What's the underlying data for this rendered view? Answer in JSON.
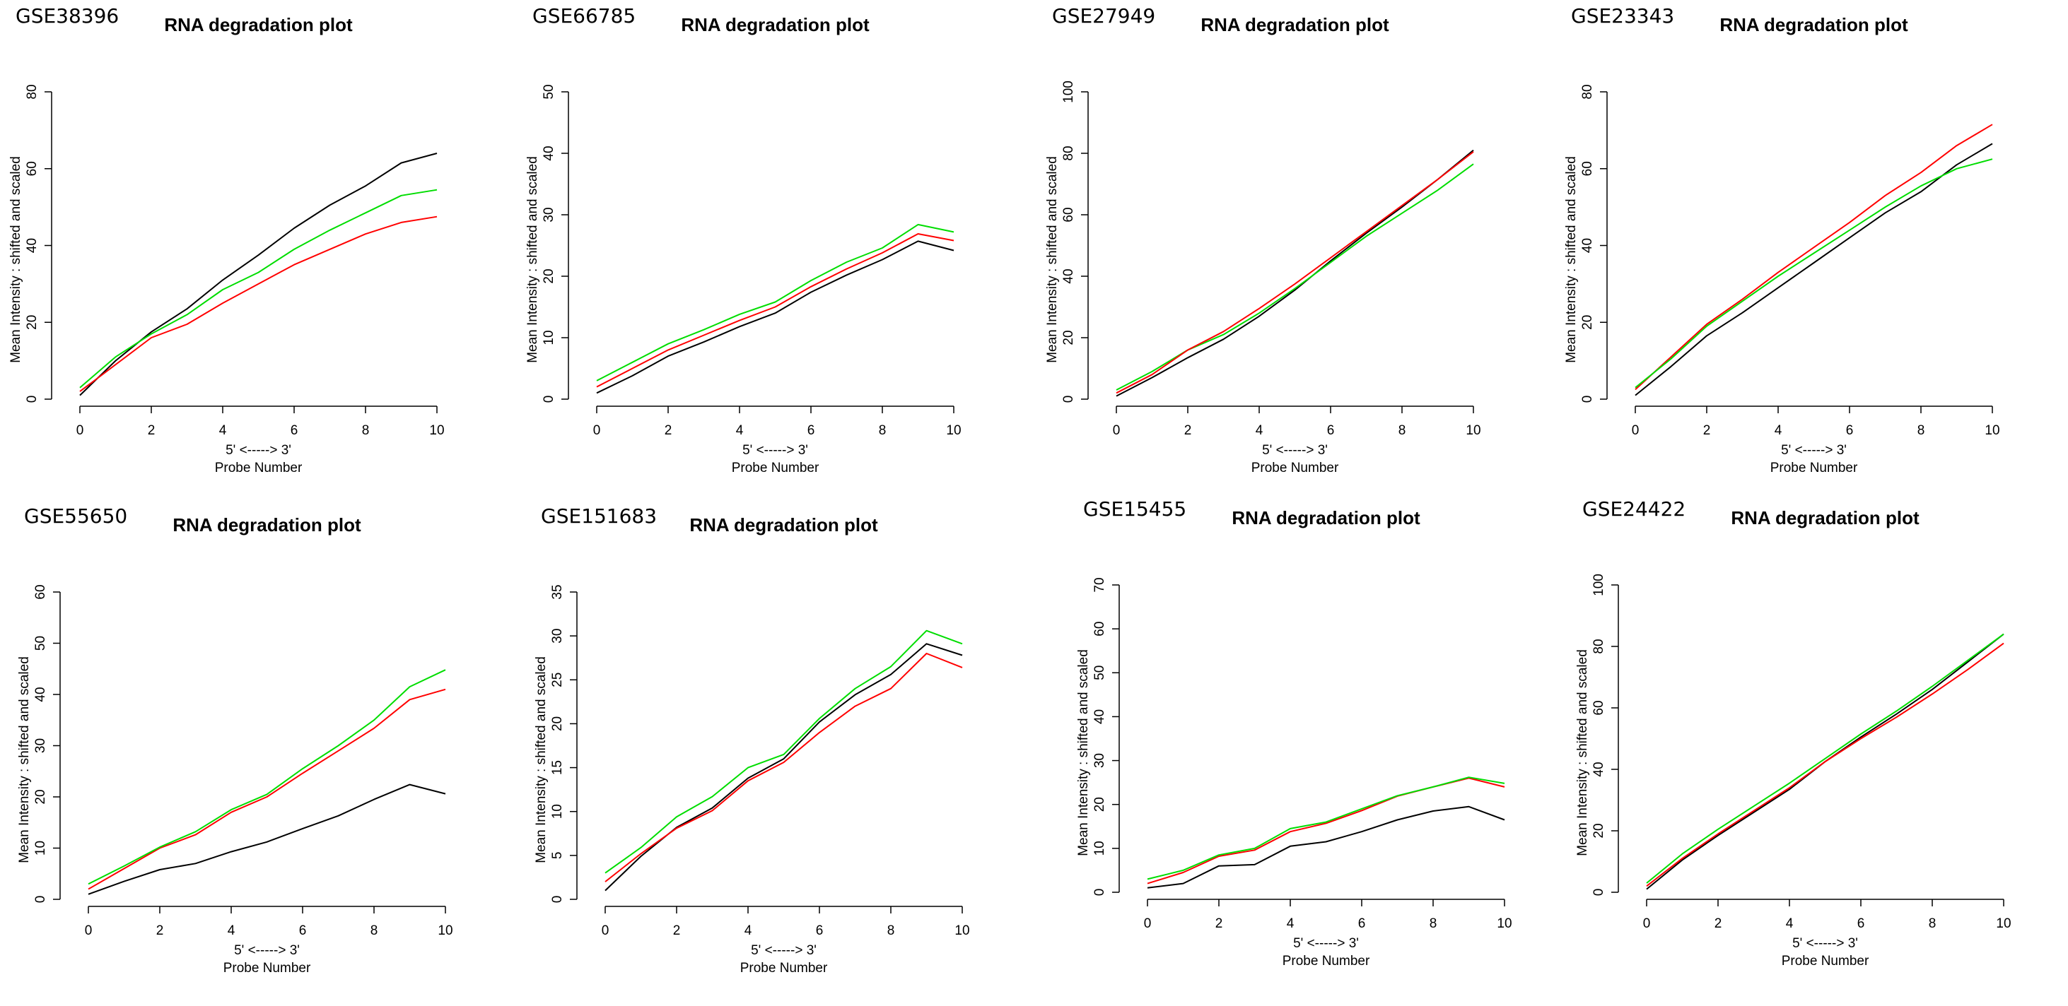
{
  "colors": {
    "black": "#000000",
    "red": "#ff0000",
    "green": "#00dd00"
  },
  "chart_data": [
    {
      "panel_label": "GSE38396",
      "type": "line",
      "title": "RNA degradation plot",
      "xlabel_top": "5' <-----> 3'",
      "xlabel": "Probe Number",
      "ylabel": "Mean Intensity : shifted and scaled",
      "xlim": [
        0,
        10
      ],
      "xticks": [
        "0",
        "2",
        "4",
        "6",
        "8",
        "10"
      ],
      "ylim": [
        0,
        80
      ],
      "yticks": [
        "0",
        "20",
        "40",
        "60",
        "80"
      ],
      "x": [
        0,
        1,
        2,
        3,
        4,
        5,
        6,
        7,
        8,
        9,
        10
      ],
      "series": [
        {
          "name": "black",
          "color": "#000000",
          "values": [
            1,
            10,
            17.5,
            23.5,
            31,
            37.5,
            44.5,
            50.5,
            55.5,
            61.5,
            64
          ]
        },
        {
          "name": "green",
          "color": "#00dd00",
          "values": [
            3,
            11,
            17,
            22,
            28.5,
            33,
            39,
            44,
            48.5,
            53,
            54.5
          ]
        },
        {
          "name": "red",
          "color": "#ff0000",
          "values": [
            2,
            9,
            16,
            19.5,
            25,
            30,
            35,
            39,
            43,
            46,
            47.5
          ]
        }
      ]
    },
    {
      "panel_label": "GSE66785",
      "type": "line",
      "title": "RNA degradation plot",
      "xlabel_top": "5' <-----> 3'",
      "xlabel": "Probe Number",
      "ylabel": "Mean Intensity : shifted and scaled",
      "xlim": [
        0,
        10
      ],
      "xticks": [
        "0",
        "2",
        "4",
        "6",
        "8",
        "10"
      ],
      "ylim": [
        0,
        50
      ],
      "yticks": [
        "0",
        "10",
        "20",
        "30",
        "40",
        "50"
      ],
      "x": [
        0,
        1,
        2,
        3,
        4,
        5,
        6,
        7,
        8,
        9,
        10
      ],
      "series": [
        {
          "name": "black",
          "color": "#000000",
          "values": [
            1,
            3.8,
            7,
            9.3,
            11.8,
            14,
            17.4,
            20.2,
            22.7,
            25.7,
            24.2
          ]
        },
        {
          "name": "red",
          "color": "#ff0000",
          "values": [
            2,
            5,
            8,
            10.4,
            12.8,
            15,
            18.3,
            21.2,
            23.8,
            26.9,
            25.8
          ]
        },
        {
          "name": "green",
          "color": "#00dd00",
          "values": [
            3,
            6,
            9,
            11.3,
            13.8,
            15.8,
            19.3,
            22.3,
            24.6,
            28.4,
            27.2
          ]
        }
      ]
    },
    {
      "panel_label": "GSE27949",
      "type": "line",
      "title": "RNA degradation plot",
      "xlabel_top": "5' <-----> 3'",
      "xlabel": "Probe Number",
      "ylabel": "Mean Intensity : shifted and scaled",
      "xlim": [
        0,
        10
      ],
      "xticks": [
        "0",
        "2",
        "4",
        "6",
        "8",
        "10"
      ],
      "ylim": [
        0,
        100
      ],
      "yticks": [
        "0",
        "20",
        "40",
        "60",
        "80",
        "100"
      ],
      "x": [
        0,
        1,
        2,
        3,
        4,
        5,
        6,
        7,
        8,
        9,
        10
      ],
      "series": [
        {
          "name": "black",
          "color": "#000000",
          "values": [
            1,
            7,
            13.5,
            19.5,
            27,
            35.5,
            45,
            54,
            62.5,
            71.5,
            81
          ]
        },
        {
          "name": "green",
          "color": "#00dd00",
          "values": [
            3,
            9,
            16,
            21,
            28,
            36,
            44.5,
            53,
            60.5,
            68,
            76.5
          ]
        },
        {
          "name": "red",
          "color": "#ff0000",
          "values": [
            2,
            8,
            16,
            22,
            29.5,
            37.5,
            46,
            54.5,
            63,
            71.5,
            80.5
          ]
        }
      ]
    },
    {
      "panel_label": "GSE23343",
      "type": "line",
      "title": "RNA degradation plot",
      "xlabel_top": "5' <-----> 3'",
      "xlabel": "Probe Number",
      "ylabel": "Mean Intensity : shifted and scaled",
      "xlim": [
        0,
        10
      ],
      "xticks": [
        "0",
        "2",
        "4",
        "6",
        "8",
        "10"
      ],
      "ylim": [
        0,
        80
      ],
      "yticks": [
        "0",
        "20",
        "40",
        "60",
        "80"
      ],
      "x": [
        0,
        1,
        2,
        3,
        4,
        5,
        6,
        7,
        8,
        9,
        10
      ],
      "series": [
        {
          "name": "black",
          "color": "#000000",
          "values": [
            1,
            8.5,
            16.5,
            22.5,
            29,
            35.5,
            42,
            48.5,
            54,
            61,
            66.5
          ]
        },
        {
          "name": "red",
          "color": "#ff0000",
          "values": [
            2.5,
            11,
            19.5,
            26,
            33,
            39.5,
            46,
            53,
            59,
            66,
            71.5
          ]
        },
        {
          "name": "green",
          "color": "#00dd00",
          "values": [
            3,
            10.5,
            19,
            25.5,
            32,
            38,
            44,
            50,
            55.5,
            60,
            62.5
          ]
        }
      ]
    },
    {
      "panel_label": "GSE55650",
      "type": "line",
      "title": "RNA degradation plot",
      "xlabel_top": "5' <-----> 3'",
      "xlabel": "Probe Number",
      "ylabel": "Mean Intensity : shifted and scaled",
      "xlim": [
        0,
        10
      ],
      "xticks": [
        "0",
        "2",
        "4",
        "6",
        "8",
        "10"
      ],
      "ylim": [
        0,
        60
      ],
      "yticks": [
        "0",
        "10",
        "20",
        "30",
        "40",
        "50",
        "60"
      ],
      "x": [
        0,
        1,
        2,
        3,
        4,
        5,
        6,
        7,
        8,
        9,
        10
      ],
      "series": [
        {
          "name": "black",
          "color": "#000000",
          "values": [
            1,
            3.5,
            5.8,
            7,
            9.3,
            11.2,
            13.8,
            16.3,
            19.5,
            22.4,
            20.6
          ]
        },
        {
          "name": "red",
          "color": "#ff0000",
          "values": [
            2,
            6,
            10,
            12.6,
            17,
            20,
            24.6,
            29,
            33.4,
            39,
            41
          ]
        },
        {
          "name": "green",
          "color": "#00dd00",
          "values": [
            3,
            6.5,
            10.2,
            13.2,
            17.5,
            20.5,
            25.5,
            30,
            35,
            41.5,
            44.8
          ]
        }
      ]
    },
    {
      "panel_label": "GSE151683",
      "type": "line",
      "title": "RNA degradation plot",
      "xlabel_top": "5' <-----> 3'",
      "xlabel": "Probe Number",
      "ylabel": "Mean Intensity : shifted and scaled",
      "xlim": [
        0,
        10
      ],
      "xticks": [
        "0",
        "2",
        "4",
        "6",
        "8",
        "10"
      ],
      "ylim": [
        0,
        35
      ],
      "yticks": [
        "0",
        "5",
        "10",
        "15",
        "20",
        "25",
        "30",
        "35"
      ],
      "x": [
        0,
        1,
        2,
        3,
        4,
        5,
        6,
        7,
        8,
        9,
        10
      ],
      "series": [
        {
          "name": "black",
          "color": "#000000",
          "values": [
            1,
            4.9,
            8.2,
            10.4,
            13.8,
            16,
            20.2,
            23.3,
            25.6,
            29.1,
            27.8
          ]
        },
        {
          "name": "red",
          "color": "#ff0000",
          "values": [
            2,
            5.2,
            8.1,
            10.1,
            13.5,
            15.6,
            19,
            22,
            24,
            28,
            26.4
          ]
        },
        {
          "name": "green",
          "color": "#00dd00",
          "values": [
            3,
            5.9,
            9.4,
            11.7,
            15,
            16.5,
            20.6,
            24,
            26.5,
            30.6,
            29.1
          ]
        }
      ]
    },
    {
      "panel_label": "GSE15455",
      "type": "line",
      "title": "RNA degradation plot",
      "xlabel_top": "5' <-----> 3'",
      "xlabel": "Probe Number",
      "ylabel": "Mean Intensity : shifted and scaled",
      "xlim": [
        0,
        10
      ],
      "xticks": [
        "0",
        "2",
        "4",
        "6",
        "8",
        "10"
      ],
      "ylim": [
        0,
        70
      ],
      "yticks": [
        "0",
        "10",
        "20",
        "30",
        "40",
        "50",
        "60",
        "70"
      ],
      "x": [
        0,
        1,
        2,
        3,
        4,
        5,
        6,
        7,
        8,
        9,
        10
      ],
      "series": [
        {
          "name": "black",
          "color": "#000000",
          "values": [
            1,
            2,
            6,
            6.3,
            10.5,
            11.5,
            13.8,
            16.5,
            18.5,
            19.5,
            16.5
          ]
        },
        {
          "name": "red",
          "color": "#ff0000",
          "values": [
            2,
            4.5,
            8.2,
            9.6,
            13.8,
            15.7,
            18.6,
            21.9,
            24,
            26,
            24
          ]
        },
        {
          "name": "green",
          "color": "#00dd00",
          "values": [
            3,
            5,
            8.5,
            10,
            14.5,
            16,
            19,
            22,
            24,
            26.2,
            24.8
          ]
        }
      ]
    },
    {
      "panel_label": "GSE24422",
      "type": "line",
      "title": "RNA degradation plot",
      "xlabel_top": "5' <-----> 3'",
      "xlabel": "Probe Number",
      "ylabel": "Mean Intensity : shifted and scaled",
      "xlim": [
        0,
        10
      ],
      "xticks": [
        "0",
        "2",
        "4",
        "6",
        "8",
        "10"
      ],
      "ylim": [
        0,
        100
      ],
      "yticks": [
        "0",
        "20",
        "40",
        "60",
        "80",
        "100"
      ],
      "x": [
        0,
        1,
        2,
        3,
        4,
        5,
        6,
        7,
        8,
        9,
        10
      ],
      "series": [
        {
          "name": "black",
          "color": "#000000",
          "values": [
            1,
            10.5,
            18.5,
            26,
            33.5,
            42.5,
            50.5,
            58,
            66,
            75,
            84
          ]
        },
        {
          "name": "red",
          "color": "#ff0000",
          "values": [
            2,
            11,
            19,
            26.5,
            34,
            42.5,
            50,
            57,
            64.5,
            72.5,
            81
          ]
        },
        {
          "name": "green",
          "color": "#00dd00",
          "values": [
            3,
            12.5,
            20.5,
            28,
            35.5,
            43.5,
            51.5,
            59,
            67,
            75.5,
            84
          ]
        }
      ]
    }
  ]
}
